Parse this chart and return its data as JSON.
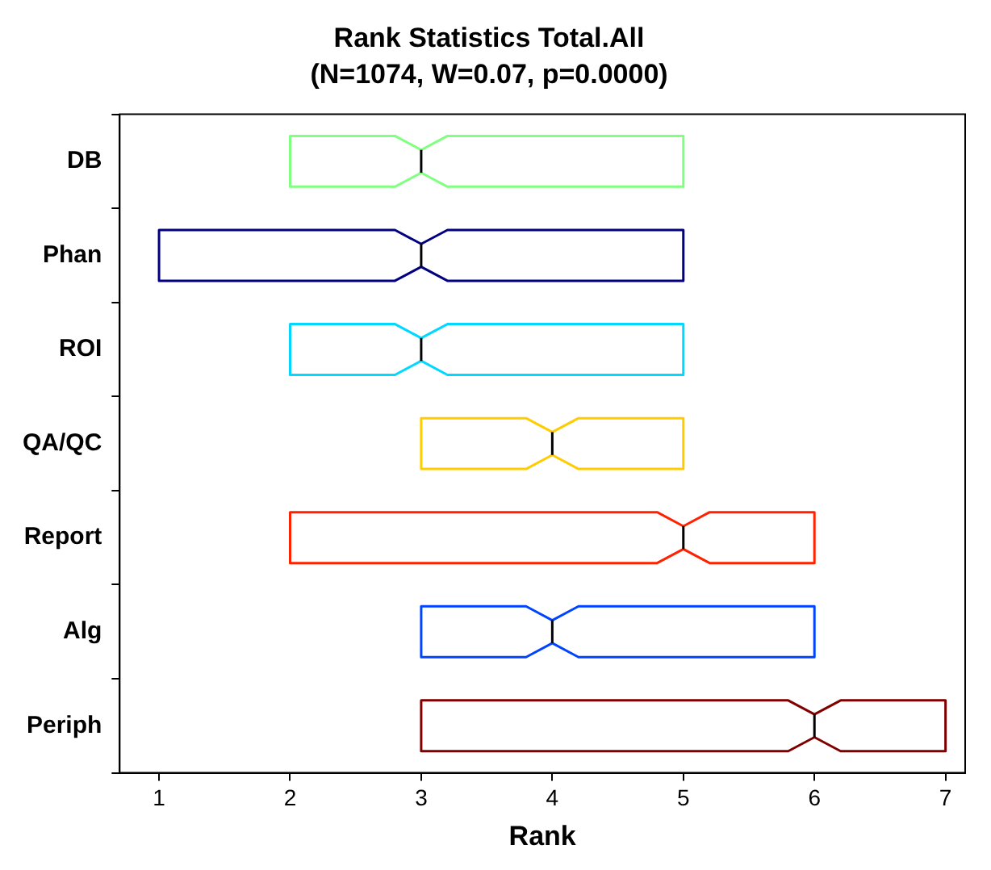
{
  "chart_data": {
    "type": "box",
    "title": "Rank Statistics Total.All",
    "subtitle": "(N=1074, W=0.07, p=0.0000)",
    "xlabel": "Rank",
    "orientation": "horizontal",
    "categories": [
      "DB",
      "Phan",
      "ROI",
      "QA/QC",
      "Report",
      "Alg",
      "Periph"
    ],
    "colors": [
      "#80ff80",
      "#000080",
      "#00d8ff",
      "#ffcc00",
      "#ff2200",
      "#0044ff",
      "#800000"
    ],
    "boxes": [
      {
        "low": 2,
        "q1": 2,
        "median": 3,
        "q3": 5,
        "high": 5
      },
      {
        "low": 1,
        "q1": 1,
        "median": 3,
        "q3": 5,
        "high": 5
      },
      {
        "low": 2,
        "q1": 2,
        "median": 3,
        "q3": 5,
        "high": 5
      },
      {
        "low": 3,
        "q1": 3,
        "median": 4,
        "q3": 5,
        "high": 5
      },
      {
        "low": 2,
        "q1": 2,
        "median": 5,
        "q3": 6,
        "high": 6
      },
      {
        "low": 3,
        "q1": 3,
        "median": 4,
        "q3": 6,
        "high": 6
      },
      {
        "low": 3,
        "q1": 3,
        "median": 6,
        "q3": 7,
        "high": 7
      }
    ],
    "xlim": [
      0.7,
      7.15
    ],
    "xticks": [
      1,
      2,
      3,
      4,
      5,
      6,
      7
    ],
    "grid": false,
    "legend": false
  }
}
